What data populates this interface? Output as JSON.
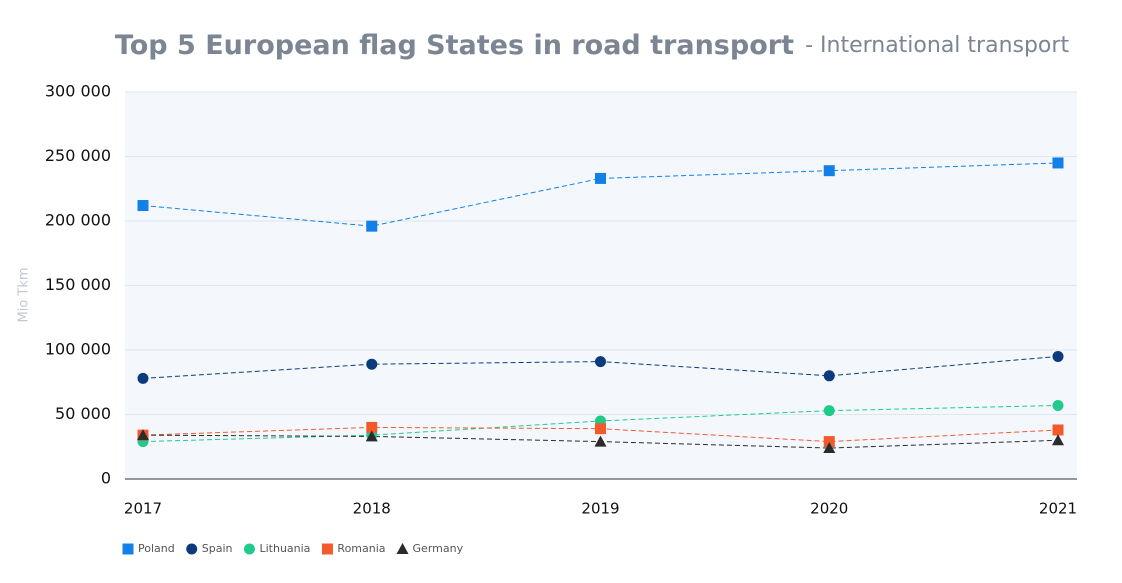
{
  "chart_data": {
    "type": "line",
    "title": "Top 5 European flag States in road transport",
    "subtitle": "- International transport",
    "y_label": "Mio Tkm",
    "categories": [
      "2017",
      "2018",
      "2019",
      "2020",
      "2021"
    ],
    "series": [
      {
        "name": "Poland",
        "color": "#1380e8",
        "marker": "square",
        "values": [
          212000,
          196000,
          233000,
          239000,
          245000
        ]
      },
      {
        "name": "Spain",
        "color": "#0c3a7d",
        "marker": "circle",
        "values": [
          78000,
          89000,
          91000,
          80000,
          95000
        ]
      },
      {
        "name": "Lithuania",
        "color": "#1fcb8b",
        "marker": "circle",
        "values": [
          29000,
          34000,
          45000,
          53000,
          57000
        ]
      },
      {
        "name": "Romania",
        "color": "#f25a2c",
        "marker": "square",
        "values": [
          34000,
          40000,
          39000,
          29000,
          38000
        ]
      },
      {
        "name": "Germany",
        "color": "#2b2b2b",
        "marker": "triangle",
        "values": [
          34000,
          33000,
          29000,
          24000,
          30000
        ]
      }
    ],
    "ylim": [
      0,
      300000
    ],
    "yticks": [
      0,
      {
        "value": 50000,
        "label": "50 000"
      },
      {
        "value": 100000,
        "label": "100 000"
      },
      {
        "value": 150000,
        "label": "150 000"
      },
      {
        "value": 200000,
        "label": "200 000"
      },
      {
        "value": 250000,
        "label": "250 000"
      },
      {
        "value": 300000,
        "label": "300 000"
      }
    ],
    "grid": true
  }
}
